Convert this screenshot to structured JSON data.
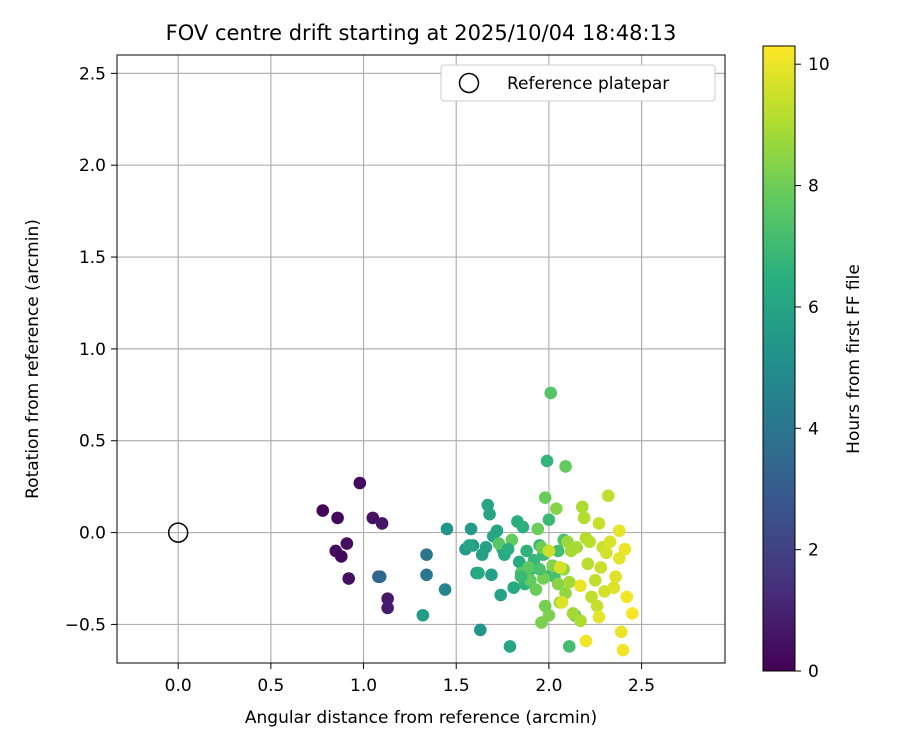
{
  "chart_data": {
    "type": "scatter",
    "title": "FOV centre drift starting at 2025/10/04 18:48:13",
    "xlabel": "Angular distance from reference (arcmin)",
    "ylabel": "Rotation from reference (arcmin)",
    "xlim": [
      -0.33,
      2.95
    ],
    "ylim": [
      -0.71,
      2.6
    ],
    "xticks": [
      0.0,
      0.5,
      1.0,
      1.5,
      2.0,
      2.5
    ],
    "xtick_labels": [
      "0.0",
      "0.5",
      "1.0",
      "1.5",
      "2.0",
      "2.5"
    ],
    "yticks": [
      -0.5,
      0.0,
      0.5,
      1.0,
      1.5,
      2.0,
      2.5
    ],
    "ytick_labels": [
      "−0.5",
      "0.0",
      "0.5",
      "1.0",
      "1.5",
      "2.0",
      "2.5"
    ],
    "grid": true,
    "legend": {
      "position": "top-right",
      "entries": [
        {
          "label": "Reference platepar",
          "marker": "open-circle"
        }
      ]
    },
    "reference_point": {
      "x": 0.0,
      "y": 0.0
    },
    "colorbar": {
      "label": "Hours from first FF file",
      "min": 0,
      "max": 10.3,
      "ticks": [
        0,
        2,
        4,
        6,
        8,
        10
      ],
      "tick_labels": [
        "0",
        "2",
        "4",
        "6",
        "8",
        "10"
      ],
      "colormap": "viridis"
    },
    "points": [
      {
        "x": 0.78,
        "y": 0.12,
        "h": 0.1
      },
      {
        "x": 0.86,
        "y": 0.08,
        "h": 0.2
      },
      {
        "x": 0.98,
        "y": 0.27,
        "h": 0.3
      },
      {
        "x": 1.05,
        "y": 0.08,
        "h": 0.5
      },
      {
        "x": 1.1,
        "y": 0.05,
        "h": 0.6
      },
      {
        "x": 0.85,
        "y": -0.1,
        "h": 0.3
      },
      {
        "x": 0.91,
        "y": -0.06,
        "h": 0.4
      },
      {
        "x": 0.88,
        "y": -0.13,
        "h": 0.2
      },
      {
        "x": 0.92,
        "y": -0.25,
        "h": 0.4
      },
      {
        "x": 1.13,
        "y": -0.36,
        "h": 0.7
      },
      {
        "x": 1.13,
        "y": -0.41,
        "h": 0.8
      },
      {
        "x": 1.08,
        "y": -0.24,
        "h": 3.3
      },
      {
        "x": 1.09,
        "y": -0.24,
        "h": 3.4
      },
      {
        "x": 1.34,
        "y": -0.12,
        "h": 4.0
      },
      {
        "x": 1.34,
        "y": -0.23,
        "h": 4.1
      },
      {
        "x": 1.32,
        "y": -0.45,
        "h": 5.7
      },
      {
        "x": 1.44,
        "y": -0.31,
        "h": 4.6
      },
      {
        "x": 1.45,
        "y": 0.02,
        "h": 5.3
      },
      {
        "x": 1.55,
        "y": -0.09,
        "h": 5.5
      },
      {
        "x": 1.58,
        "y": 0.02,
        "h": 5.6
      },
      {
        "x": 1.59,
        "y": -0.07,
        "h": 5.6
      },
      {
        "x": 1.61,
        "y": -0.22,
        "h": 5.7
      },
      {
        "x": 1.63,
        "y": -0.53,
        "h": 5.3
      },
      {
        "x": 1.64,
        "y": -0.12,
        "h": 5.8
      },
      {
        "x": 1.66,
        "y": -0.08,
        "h": 5.9
      },
      {
        "x": 1.67,
        "y": 0.15,
        "h": 6.0
      },
      {
        "x": 1.68,
        "y": 0.1,
        "h": 6.0
      },
      {
        "x": 1.7,
        "y": -0.02,
        "h": 6.0
      },
      {
        "x": 1.69,
        "y": -0.23,
        "h": 5.8
      },
      {
        "x": 1.72,
        "y": 0.01,
        "h": 6.1
      },
      {
        "x": 1.74,
        "y": -0.34,
        "h": 5.9
      },
      {
        "x": 1.75,
        "y": -0.09,
        "h": 6.2
      },
      {
        "x": 1.76,
        "y": -0.12,
        "h": 6.2
      },
      {
        "x": 1.79,
        "y": -0.62,
        "h": 6.1
      },
      {
        "x": 1.81,
        "y": -0.3,
        "h": 6.3
      },
      {
        "x": 1.83,
        "y": 0.06,
        "h": 6.4
      },
      {
        "x": 1.84,
        "y": -0.16,
        "h": 6.4
      },
      {
        "x": 1.86,
        "y": 0.03,
        "h": 6.5
      },
      {
        "x": 1.87,
        "y": -0.28,
        "h": 6.6
      },
      {
        "x": 1.88,
        "y": -0.1,
        "h": 6.6
      },
      {
        "x": 1.9,
        "y": -0.2,
        "h": 6.7
      },
      {
        "x": 1.92,
        "y": -0.15,
        "h": 6.8
      },
      {
        "x": 1.95,
        "y": -0.07,
        "h": 6.8
      },
      {
        "x": 1.97,
        "y": -0.12,
        "h": 6.9
      },
      {
        "x": 1.99,
        "y": 0.39,
        "h": 6.7
      },
      {
        "x": 2.0,
        "y": 0.07,
        "h": 6.9
      },
      {
        "x": 2.01,
        "y": 0.76,
        "h": 7.5
      },
      {
        "x": 1.98,
        "y": 0.19,
        "h": 7.9
      },
      {
        "x": 2.09,
        "y": 0.36,
        "h": 7.8
      },
      {
        "x": 2.01,
        "y": -0.23,
        "h": 7.0
      },
      {
        "x": 2.05,
        "y": -0.1,
        "h": 7.1
      },
      {
        "x": 2.03,
        "y": -0.24,
        "h": 7.2
      },
      {
        "x": 2.08,
        "y": -0.04,
        "h": 7.3
      },
      {
        "x": 2.11,
        "y": -0.62,
        "h": 7.1
      },
      {
        "x": 2.14,
        "y": -0.45,
        "h": 7.4
      },
      {
        "x": 1.62,
        "y": -0.22,
        "h": 6.3
      },
      {
        "x": 1.57,
        "y": -0.07,
        "h": 6.0
      },
      {
        "x": 1.73,
        "y": -0.06,
        "h": 7.6
      },
      {
        "x": 1.8,
        "y": -0.04,
        "h": 7.8
      },
      {
        "x": 1.85,
        "y": -0.22,
        "h": 7.5
      },
      {
        "x": 1.89,
        "y": -0.19,
        "h": 7.7
      },
      {
        "x": 1.9,
        "y": -0.26,
        "h": 7.8
      },
      {
        "x": 1.93,
        "y": -0.31,
        "h": 7.9
      },
      {
        "x": 1.94,
        "y": 0.02,
        "h": 7.9
      },
      {
        "x": 1.96,
        "y": -0.08,
        "h": 8.0
      },
      {
        "x": 1.97,
        "y": -0.25,
        "h": 8.1
      },
      {
        "x": 1.98,
        "y": -0.4,
        "h": 8.1
      },
      {
        "x": 1.96,
        "y": -0.49,
        "h": 8.2
      },
      {
        "x": 2.0,
        "y": -0.45,
        "h": 8.2
      },
      {
        "x": 2.02,
        "y": -0.18,
        "h": 8.3
      },
      {
        "x": 2.04,
        "y": 0.13,
        "h": 8.4
      },
      {
        "x": 2.05,
        "y": -0.28,
        "h": 8.4
      },
      {
        "x": 2.06,
        "y": -0.38,
        "h": 8.5
      },
      {
        "x": 2.08,
        "y": -0.2,
        "h": 8.6
      },
      {
        "x": 2.09,
        "y": -0.33,
        "h": 8.6
      },
      {
        "x": 2.1,
        "y": -0.05,
        "h": 8.7
      },
      {
        "x": 2.11,
        "y": -0.27,
        "h": 8.8
      },
      {
        "x": 2.13,
        "y": -0.44,
        "h": 8.8
      },
      {
        "x": 2.15,
        "y": -0.08,
        "h": 8.9
      },
      {
        "x": 2.17,
        "y": -0.48,
        "h": 9.0
      },
      {
        "x": 2.18,
        "y": 0.14,
        "h": 9.0
      },
      {
        "x": 2.19,
        "y": 0.08,
        "h": 9.1
      },
      {
        "x": 2.2,
        "y": -0.03,
        "h": 9.1
      },
      {
        "x": 2.21,
        "y": -0.17,
        "h": 9.2
      },
      {
        "x": 2.22,
        "y": -0.05,
        "h": 9.2
      },
      {
        "x": 2.23,
        "y": -0.35,
        "h": 9.3
      },
      {
        "x": 2.25,
        "y": -0.26,
        "h": 9.3
      },
      {
        "x": 2.26,
        "y": -0.4,
        "h": 9.4
      },
      {
        "x": 2.27,
        "y": 0.05,
        "h": 9.4
      },
      {
        "x": 2.28,
        "y": -0.19,
        "h": 9.5
      },
      {
        "x": 2.29,
        "y": -0.08,
        "h": 9.5
      },
      {
        "x": 2.3,
        "y": -0.32,
        "h": 9.6
      },
      {
        "x": 2.31,
        "y": -0.11,
        "h": 9.6
      },
      {
        "x": 2.32,
        "y": 0.2,
        "h": 9.3
      },
      {
        "x": 2.33,
        "y": -0.05,
        "h": 9.7
      },
      {
        "x": 2.35,
        "y": -0.3,
        "h": 9.8
      },
      {
        "x": 2.36,
        "y": -0.24,
        "h": 9.8
      },
      {
        "x": 2.38,
        "y": 0.01,
        "h": 9.9
      },
      {
        "x": 2.38,
        "y": -0.14,
        "h": 9.9
      },
      {
        "x": 2.39,
        "y": -0.54,
        "h": 10.0
      },
      {
        "x": 2.4,
        "y": -0.64,
        "h": 10.1
      },
      {
        "x": 2.41,
        "y": -0.09,
        "h": 10.0
      },
      {
        "x": 2.42,
        "y": -0.35,
        "h": 10.1
      },
      {
        "x": 2.45,
        "y": -0.44,
        "h": 10.2
      },
      {
        "x": 2.2,
        "y": -0.59,
        "h": 10.1
      },
      {
        "x": 2.17,
        "y": -0.29,
        "h": 10.0
      },
      {
        "x": 2.07,
        "y": -0.38,
        "h": 9.8
      },
      {
        "x": 2.06,
        "y": -0.19,
        "h": 9.7
      },
      {
        "x": 2.12,
        "y": -0.1,
        "h": 8.9
      },
      {
        "x": 2.27,
        "y": -0.46,
        "h": 9.9
      },
      {
        "x": 2.0,
        "y": -0.1,
        "h": 9.5
      },
      {
        "x": 1.95,
        "y": -0.2,
        "h": 7.3
      },
      {
        "x": 1.85,
        "y": -0.24,
        "h": 6.9
      },
      {
        "x": 1.78,
        "y": -0.09,
        "h": 6.5
      }
    ]
  }
}
